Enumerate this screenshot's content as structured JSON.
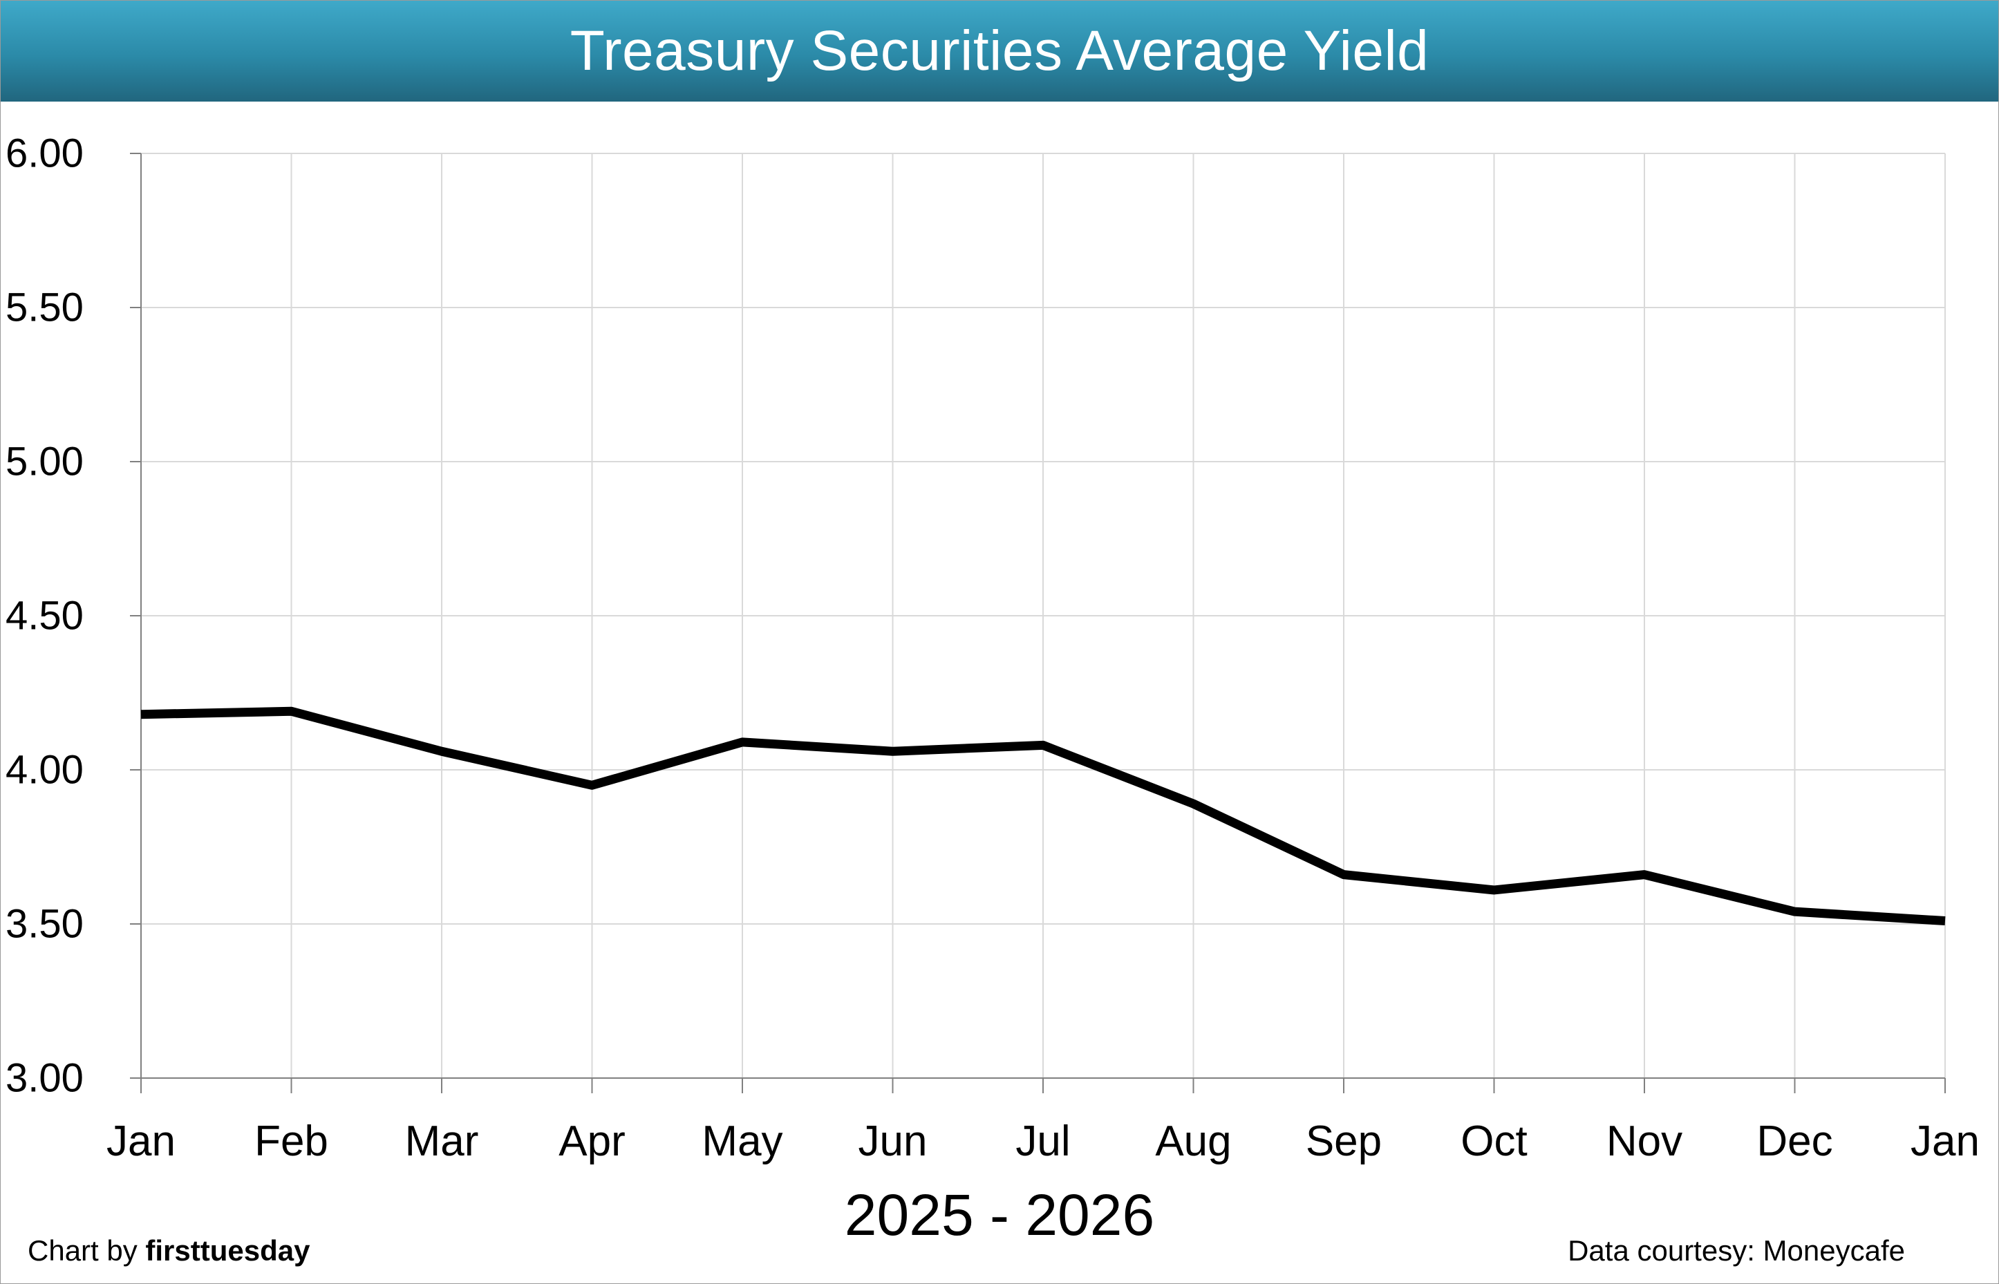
{
  "chart_data": {
    "type": "line",
    "title": "Treasury Securities Average Yield",
    "xlabel": "2025 - 2026",
    "ylabel": "",
    "categories": [
      "Jan",
      "Feb",
      "Mar",
      "Apr",
      "May",
      "Jun",
      "Jul",
      "Aug",
      "Sep",
      "Oct",
      "Nov",
      "Dec",
      "Jan"
    ],
    "series": [
      {
        "values": [
          4.18,
          4.19,
          4.06,
          3.95,
          4.09,
          4.06,
          4.08,
          3.89,
          3.66,
          3.61,
          3.66,
          3.54,
          3.51
        ],
        "color": "#000000"
      }
    ],
    "ylim": [
      3.0,
      6.0
    ],
    "yticks": [
      "3.00",
      "3.50",
      "4.00",
      "4.50",
      "5.00",
      "5.50",
      "6.00"
    ],
    "grid": true,
    "legend": "none"
  },
  "footer": {
    "credit_prefix": "Chart by ",
    "credit_brand": "firsttuesday",
    "source": "Data courtesy: Moneycafe"
  },
  "colors": {
    "title_bar_top": "#3fa9c9",
    "title_bar_bottom": "#21667e",
    "title_text": "#ffffff",
    "gridline": "#d9d9d9",
    "axis": "#808080"
  }
}
